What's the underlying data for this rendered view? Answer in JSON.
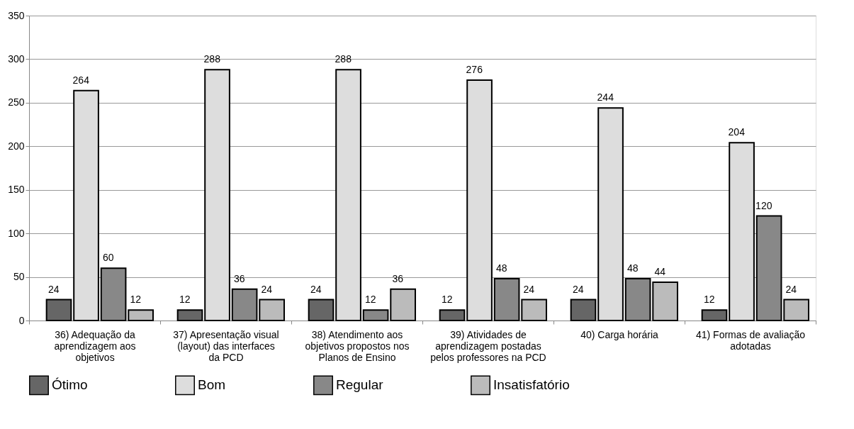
{
  "chart_data": {
    "type": "bar",
    "categories": [
      "36) Adequação da aprendizagem aos objetivos",
      "37) Apresentação visual (layout) das interfaces da PCD",
      "38) Atendimento aos objetivos propostos nos Planos de Ensino",
      "39) Atividades de aprendizagem postadas pelos professores na PCD",
      "40) Carga horária",
      "41) Formas de avaliação adotadas"
    ],
    "series": [
      {
        "name": "Ótimo",
        "color": "#666666",
        "values": [
          24,
          12,
          24,
          12,
          24,
          12
        ]
      },
      {
        "name": "Bom",
        "color": "#dddddd",
        "values": [
          264,
          288,
          288,
          276,
          244,
          204
        ]
      },
      {
        "name": "Regular",
        "color": "#888888",
        "values": [
          60,
          36,
          12,
          48,
          48,
          120
        ]
      },
      {
        "name": "Insatisfatório",
        "color": "#bbbbbb",
        "values": [
          12,
          24,
          36,
          24,
          44,
          24
        ]
      }
    ],
    "ylim": [
      0,
      350
    ],
    "yticks": [
      0,
      50,
      100,
      150,
      200,
      250,
      300,
      350
    ],
    "grid": "y",
    "legend": "bottom",
    "data_labels": true
  }
}
